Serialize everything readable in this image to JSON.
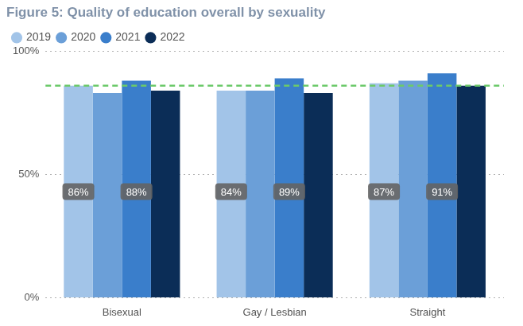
{
  "chart_data": {
    "type": "bar",
    "title": "Figure 5: Quality of education overall by sexuality",
    "categories": [
      "Bisexual",
      "Gay / Lesbian",
      "Straight"
    ],
    "series": [
      {
        "name": "2019",
        "color": "#a2c4e8",
        "values": [
          86,
          84,
          87
        ],
        "value_labels": [
          "86%",
          "84%",
          "87%"
        ]
      },
      {
        "name": "2020",
        "color": "#6b9fd8",
        "values": [
          83,
          84,
          88
        ]
      },
      {
        "name": "2021",
        "color": "#3a7ecb",
        "values": [
          88,
          89,
          91
        ],
        "value_labels": [
          "88%",
          "89%",
          "91%"
        ]
      },
      {
        "name": "2022",
        "color": "#0b2d57",
        "values": [
          84,
          83,
          86
        ]
      }
    ],
    "ylim": [
      0,
      100
    ],
    "yticks": [
      {
        "value": 0,
        "label": "0%"
      },
      {
        "value": 50,
        "label": "50%"
      },
      {
        "value": 100,
        "label": "100%"
      }
    ],
    "grid": true,
    "legend": "top-left",
    "data_labels": true,
    "reference_line": {
      "value": 86,
      "color": "#6cc96a",
      "line_style": "dashed"
    }
  }
}
